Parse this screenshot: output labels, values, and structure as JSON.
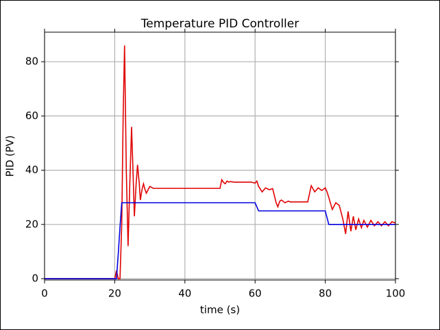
{
  "chart_data": {
    "type": "line",
    "title": "Temperature PID Controller",
    "xlabel": "time (s)",
    "ylabel": "PID (PV)",
    "x": [
      0,
      19.5,
      20,
      20.5,
      21,
      21.5,
      22,
      22.4,
      22.8,
      23.3,
      23.8,
      24.3,
      24.8,
      25.2,
      25.6,
      26.1,
      26.5,
      27,
      27.3,
      27.8,
      28.2,
      28.6,
      29,
      30,
      31,
      40,
      50,
      50.5,
      51,
      51.5,
      52,
      52.5,
      53,
      54,
      59,
      60,
      60.5,
      61,
      62,
      63,
      64,
      65,
      66,
      66.5,
      67,
      67.5,
      68.5,
      69.5,
      70,
      75,
      76,
      77,
      78,
      79,
      80,
      80.5,
      81,
      82,
      83,
      84,
      85,
      85.8,
      86.5,
      87.3,
      88,
      88.7,
      89.5,
      90.3,
      91,
      92,
      93,
      94,
      95,
      96,
      97,
      98,
      99,
      100
    ],
    "series": [
      {
        "color": "#e00000",
        "values": [
          0,
          0,
          0,
          3,
          0,
          0,
          20,
          60,
          86,
          40,
          12,
          35,
          56,
          40,
          23,
          35,
          42,
          35,
          29,
          33,
          35,
          33,
          31.5,
          34,
          33.3,
          33.3,
          33.3,
          36.5,
          35.5,
          35,
          36,
          35.6,
          35.8,
          35.6,
          35.6,
          35.2,
          36,
          34,
          32,
          33.5,
          32.8,
          33.2,
          28,
          26.5,
          28.5,
          29,
          28,
          28.6,
          28.3,
          28.3,
          34.3,
          32,
          33.5,
          32.5,
          33.5,
          32,
          30,
          25.5,
          28,
          27,
          22,
          16.5,
          24.8,
          17.5,
          23,
          18,
          22,
          18.8,
          21.5,
          19,
          21.5,
          19.5,
          21,
          19.5,
          21,
          19.5,
          21,
          20.5
        ]
      },
      {
        "color": "#0000e0",
        "values": [
          0,
          0,
          0,
          0,
          9,
          19,
          28,
          28,
          28,
          28,
          28,
          28,
          28,
          28,
          28,
          28,
          28,
          28,
          28,
          28,
          28,
          28,
          28,
          28,
          28,
          28,
          28,
          28,
          28,
          28,
          28,
          28,
          28,
          28,
          28,
          28,
          26.5,
          25,
          25,
          25,
          25,
          25,
          25,
          25,
          25,
          25,
          25,
          25,
          25,
          25,
          25,
          25,
          25,
          25,
          25,
          22.5,
          20,
          20,
          20,
          20,
          20,
          20,
          20,
          20,
          20,
          20,
          20,
          20,
          20,
          20,
          20,
          20,
          20,
          20,
          20,
          20,
          20,
          20
        ]
      }
    ],
    "xlim": [
      0,
      100
    ],
    "ylim": [
      -0.5,
      90.9
    ],
    "xticks": [
      0,
      20,
      40,
      60,
      80,
      100
    ],
    "yticks": [
      0,
      20,
      40,
      60,
      80
    ],
    "grid": true
  }
}
